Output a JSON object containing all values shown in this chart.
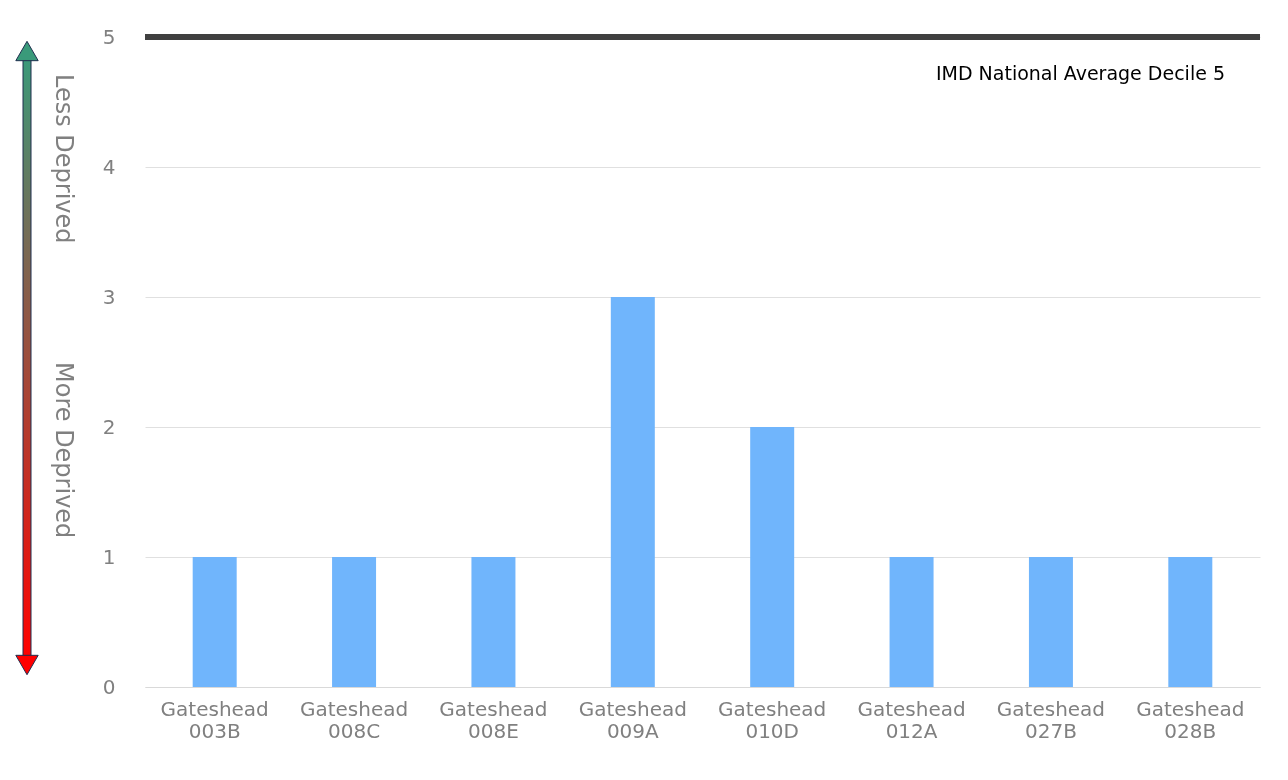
{
  "chart_data": {
    "type": "bar",
    "categories": [
      "Gateshead 003B",
      "Gateshead 008C",
      "Gateshead 008E",
      "Gateshead 009A",
      "Gateshead 010D",
      "Gateshead 012A",
      "Gateshead 027B",
      "Gateshead 028B"
    ],
    "values": [
      1,
      1,
      1,
      3,
      2,
      1,
      1,
      1
    ],
    "color": "#70b5fc",
    "ylim": [
      0,
      5
    ],
    "yticks": [
      0,
      1,
      2,
      3,
      4,
      5
    ],
    "grid": "y",
    "ref_lines": [
      {
        "axis": "y",
        "value": 5,
        "label": "IMD National Average Decile 5",
        "color": "#404040"
      }
    ],
    "annotations": [
      "Less Deprived",
      "More Deprived"
    ]
  }
}
